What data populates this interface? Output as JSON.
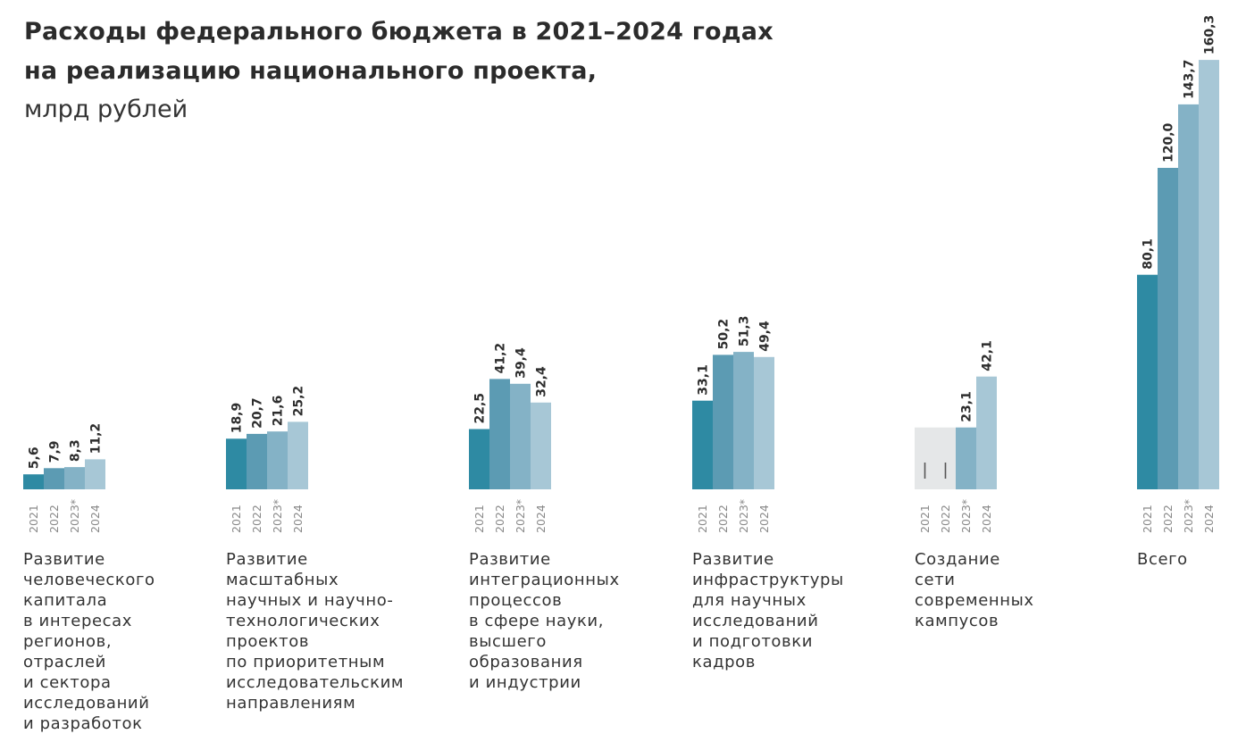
{
  "title": {
    "line1": "Расходы федерального бюджета в 2021–2024 годах",
    "line2": "на реализацию национального проекта,",
    "unit": "млрд рублей"
  },
  "colors": {
    "2021": "#2e8aa3",
    "2022": "#5c9bb3",
    "2023*": "#84b2c6",
    "2024": "#a7c7d6",
    "placeholder": "#e5e7e8"
  },
  "chart_data": {
    "type": "bar",
    "years": [
      "2021",
      "2022",
      "2023*",
      "2024"
    ],
    "groups": [
      {
        "label_lines": [
          "Развитие",
          "человеческого",
          "капитала",
          "в интересах",
          "регионов,",
          "отраслей",
          "и сектора",
          "исследований",
          "и разработок"
        ],
        "values": [
          5.6,
          7.9,
          8.3,
          11.2
        ],
        "value_labels": [
          "5,6",
          "7,9",
          "8,3",
          "11,2"
        ]
      },
      {
        "label_lines": [
          "Развитие",
          "масштабных",
          "научных и научно-",
          "технологических",
          "проектов",
          "по приоритетным",
          "исследовательским",
          "направлениям"
        ],
        "values": [
          18.9,
          20.7,
          21.6,
          25.2
        ],
        "value_labels": [
          "18,9",
          "20,7",
          "21,6",
          "25,2"
        ]
      },
      {
        "label_lines": [
          "Развитие",
          "интеграционных",
          "процессов",
          "в сфере науки,",
          "высшего",
          "образования",
          "и индустрии"
        ],
        "values": [
          22.5,
          41.2,
          39.4,
          32.4
        ],
        "value_labels": [
          "22,5",
          "41,2",
          "39,4",
          "32,4"
        ]
      },
      {
        "label_lines": [
          "Развитие",
          "инфраструктуры",
          "для научных",
          "исследований",
          "и подготовки",
          "кадров"
        ],
        "values": [
          33.1,
          50.2,
          51.3,
          49.4
        ],
        "value_labels": [
          "33,1",
          "50,2",
          "51,3",
          "49,4"
        ]
      },
      {
        "label_lines": [
          "Создание",
          "сети",
          "современных",
          "кампусов"
        ],
        "values": [
          null,
          null,
          23.1,
          42.1
        ],
        "value_labels": [
          "",
          "",
          "23,1",
          "42,1"
        ],
        "no_data_years": [
          "2021",
          "2022"
        ]
      },
      {
        "label_lines": [
          "Всего"
        ],
        "values": [
          80.1,
          120.0,
          143.7,
          160.3
        ],
        "value_labels": [
          "80,1",
          "120,0",
          "143,7",
          "160,3"
        ]
      }
    ]
  }
}
